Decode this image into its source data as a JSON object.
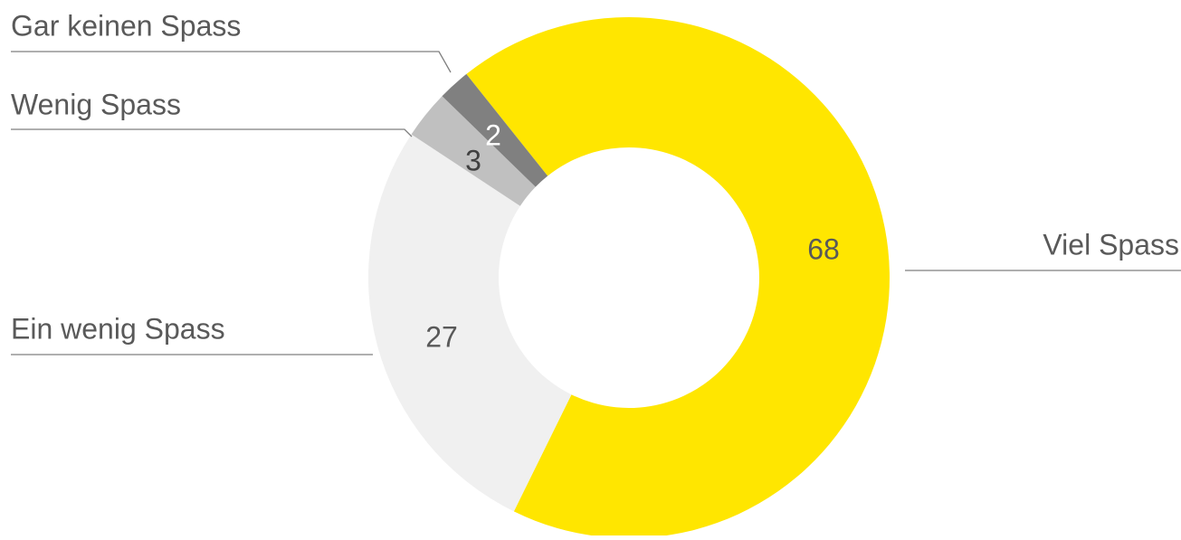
{
  "chart_data": {
    "type": "donut",
    "categories": [
      "Viel Spass",
      "Ein wenig Spass",
      "Wenig Spass",
      "Gar keinen Spass"
    ],
    "values": [
      68,
      27,
      3,
      2
    ],
    "colors": [
      "#FFE600",
      "#F0F0F0",
      "#C0C0C0",
      "#808080"
    ]
  }
}
